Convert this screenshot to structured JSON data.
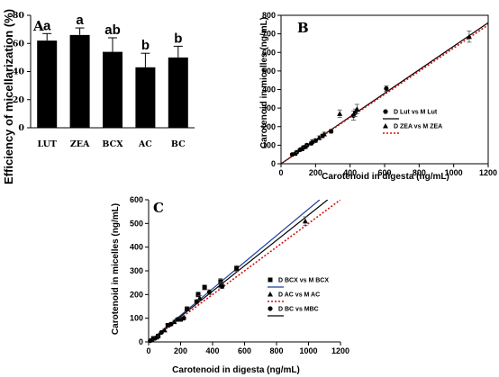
{
  "chart_data": [
    {
      "type": "bar",
      "panel": "A",
      "categories": [
        "LUT",
        "ZEA",
        "BCX",
        "AC",
        "BC"
      ],
      "values": [
        62,
        66,
        54,
        43,
        50
      ],
      "errors": [
        5,
        5,
        10,
        10,
        8
      ],
      "significance": [
        "a",
        "a",
        "ab",
        "b",
        "b"
      ],
      "ylabel": "Efficiency of micellarization (%)",
      "xlabel": "",
      "ylim": [
        0,
        80
      ],
      "yticks": [
        "0",
        "20",
        "40",
        "60",
        "80"
      ]
    },
    {
      "type": "scatter",
      "panel": "B",
      "xlabel": "Carotenoid in digesta (ng/mL)",
      "ylabel": "Carotenoid in micelles (ng/mL)",
      "xlim": [
        0,
        1200
      ],
      "ylim": [
        0,
        800
      ],
      "xticks": [
        "0",
        "200",
        "400",
        "600",
        "800",
        "1000",
        "1200"
      ],
      "yticks": [
        "0",
        "100",
        "200",
        "300",
        "400",
        "500",
        "600",
        "700",
        "800"
      ],
      "legend_position": "right",
      "series": [
        {
          "name": "D Lut vs M Lut",
          "marker": "circle",
          "points": [
            [
              65,
              50
            ],
            [
              90,
              62
            ],
            [
              110,
              75
            ],
            [
              130,
              88
            ],
            [
              150,
              100
            ],
            [
              175,
              110
            ],
            [
              200,
              125
            ],
            [
              240,
              150
            ],
            [
              290,
              175
            ],
            [
              420,
              260
            ],
            [
              430,
              275
            ],
            [
              610,
              405
            ]
          ],
          "errors": [
            6,
            6,
            6,
            8,
            8,
            8,
            10,
            10,
            10,
            25,
            20,
            15
          ]
        },
        {
          "name": "D ZEA vs M ZEA",
          "marker": "triangle",
          "points": [
            [
              80,
              55
            ],
            [
              120,
              80
            ],
            [
              140,
              92
            ],
            [
              180,
              120
            ],
            [
              220,
              140
            ],
            [
              250,
              160
            ],
            [
              340,
              270
            ],
            [
              440,
              295
            ],
            [
              1090,
              685
            ]
          ],
          "errors": [
            6,
            8,
            8,
            8,
            10,
            10,
            20,
            25,
            30
          ]
        }
      ],
      "fit_lines": [
        {
          "name": "D Lut vs M Lut",
          "style": "solid",
          "color": "#000000",
          "x": [
            0,
            1200
          ],
          "y": [
            0,
            760
          ]
        },
        {
          "name": "D ZEA vs M ZEA",
          "style": "dotted",
          "color": "#d01010",
          "x": [
            0,
            1200
          ],
          "y": [
            0,
            748
          ]
        }
      ]
    },
    {
      "type": "scatter",
      "panel": "C",
      "xlabel": "Carotenoid in digesta (ng/mL)",
      "ylabel": "Carotenoid in micelles (ng/mL)",
      "xlim": [
        0,
        1200
      ],
      "ylim": [
        0,
        600
      ],
      "xticks": [
        "0",
        "200",
        "400",
        "600",
        "800",
        "1000",
        "1200"
      ],
      "yticks": [
        "0",
        "100",
        "200",
        "300",
        "400",
        "500",
        "600"
      ],
      "legend_position": "right",
      "series": [
        {
          "name": "D BCX vs M BCX",
          "marker": "square",
          "points": [
            [
              30,
              15
            ],
            [
              60,
              25
            ],
            [
              120,
              70
            ],
            [
              200,
              95
            ],
            [
              240,
              140
            ],
            [
              310,
              200
            ],
            [
              350,
              230
            ],
            [
              450,
              255
            ],
            [
              550,
              310
            ]
          ],
          "errors": [
            4,
            4,
            6,
            6,
            8,
            10,
            10,
            12,
            12
          ]
        },
        {
          "name": "D AC vs M AC",
          "marker": "triangle",
          "points": [
            [
              20,
              10
            ],
            [
              50,
              20
            ],
            [
              100,
              50
            ],
            [
              160,
              85
            ],
            [
              190,
              95
            ],
            [
              240,
              140
            ],
            [
              320,
              185
            ],
            [
              450,
              240
            ],
            [
              980,
              510
            ]
          ],
          "errors": [
            4,
            4,
            6,
            6,
            6,
            8,
            10,
            12,
            18
          ]
        },
        {
          "name": "D BC vs MBC",
          "marker": "circle",
          "points": [
            [
              10,
              5
            ],
            [
              40,
              15
            ],
            [
              80,
              40
            ],
            [
              140,
              75
            ],
            [
              180,
              95
            ],
            [
              220,
              100
            ],
            [
              300,
              170
            ],
            [
              380,
              210
            ],
            [
              460,
              235
            ]
          ],
          "errors": [
            3,
            4,
            5,
            6,
            6,
            6,
            8,
            10,
            10
          ]
        }
      ],
      "fit_lines": [
        {
          "name": "D BCX vs M BCX",
          "style": "solid",
          "color": "#1f3fa0",
          "x": [
            0,
            1070
          ],
          "y": [
            0,
            600
          ]
        },
        {
          "name": "D AC vs M AC",
          "style": "dotted",
          "color": "#d01010",
          "x": [
            0,
            1200
          ],
          "y": [
            0,
            600
          ]
        },
        {
          "name": "D BC vs MBC",
          "style": "solid",
          "color": "#000000",
          "x": [
            0,
            1120
          ],
          "y": [
            0,
            600
          ]
        }
      ]
    }
  ]
}
